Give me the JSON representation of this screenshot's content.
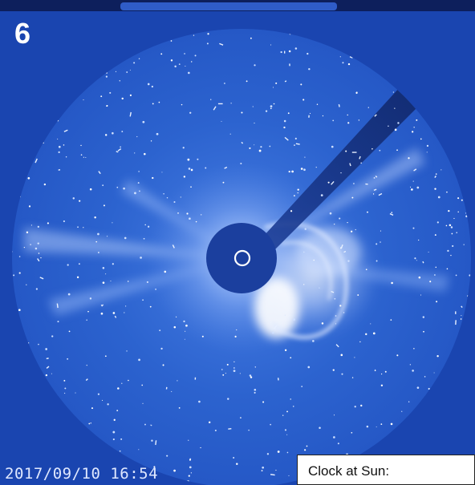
{
  "panel": {
    "number": "6",
    "timestamp": "2017/09/10 16:54",
    "clock_label": "Clock at Sun:"
  },
  "colors": {
    "background": "#1a45b0",
    "field": "#2c66d2",
    "occulter": "#1b3f9e",
    "sun_marker": "#ffffff",
    "label_box": "#ffffff"
  }
}
